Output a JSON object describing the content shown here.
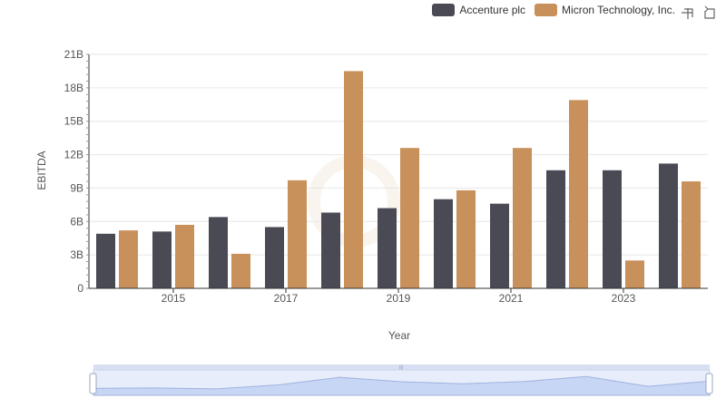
{
  "legend": [
    {
      "name": "Accenture plc",
      "color": "#4a4a55"
    },
    {
      "name": "Micron Technology, Inc.",
      "color": "#c8905a"
    }
  ],
  "toolbox": {
    "zoom_icon": "zoom-select-icon",
    "reset_icon": "restore-icon"
  },
  "chart_data": {
    "type": "bar",
    "x": [
      2014,
      2015,
      2016,
      2017,
      2018,
      2019,
      2020,
      2021,
      2022,
      2023,
      2024
    ],
    "x_tick_labels": [
      "2015",
      "2017",
      "2019",
      "2021",
      "2023"
    ],
    "ylabel": "EBITDA",
    "xlabel": "Year",
    "ylim": [
      0,
      21000000000
    ],
    "y_tick_labels": [
      "0",
      "3B",
      "6B",
      "9B",
      "12B",
      "15B",
      "18B",
      "21B"
    ],
    "grid": true,
    "legend_position": "top-right",
    "series": [
      {
        "name": "Accenture plc",
        "color": "#4a4a55",
        "values": [
          4900000000,
          5100000000,
          6400000000,
          5500000000,
          6800000000,
          7200000000,
          8000000000,
          7600000000,
          10600000000,
          10600000000,
          11200000000
        ]
      },
      {
        "name": "Micron Technology, Inc.",
        "color": "#c8905a",
        "values": [
          5200000000,
          5700000000,
          3100000000,
          9700000000,
          19500000000,
          12600000000,
          8800000000,
          12600000000,
          16900000000,
          2500000000,
          9600000000
        ]
      }
    ],
    "data_zoom": {
      "start_percent": 0,
      "end_percent": 100
    }
  }
}
